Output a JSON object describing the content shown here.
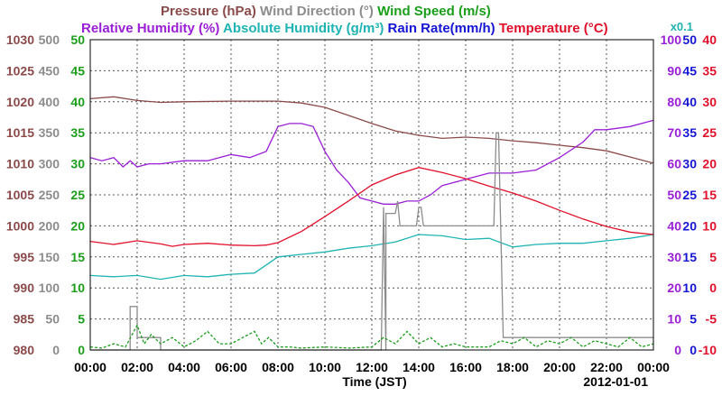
{
  "chart_data": {
    "type": "line",
    "legend": {
      "row1": [
        {
          "label": "Pressure (hPa)",
          "color": "#8b4a4a"
        },
        {
          "label": " Wind Direction (°)",
          "color": "#8c8c8c"
        },
        {
          "label": " Wind Speed (m/s)",
          "color": "#1a9e1a"
        }
      ],
      "row2": [
        {
          "label": "Relative Humidity (%)",
          "color": "#9a1fd6"
        },
        {
          "label": " Absolute Humidity (g/m³)",
          "color": "#1fb3b3"
        },
        {
          "label": " Rain Rate(mm/h)",
          "color": "#1515d4"
        },
        {
          "label": " Temperature (°C)",
          "color": "#e0102a"
        }
      ],
      "rain_multiplier": "x0.1"
    },
    "xlabel": "Time (JST)",
    "date_label": "2012-01-01",
    "x_ticks": [
      "00:00",
      "02:00",
      "04:00",
      "06:00",
      "08:00",
      "10:00",
      "12:00",
      "14:00",
      "16:00",
      "18:00",
      "20:00",
      "22:00",
      "00:00"
    ],
    "x_range_hours": [
      0,
      24
    ],
    "left_axes": [
      {
        "name": "Pressure",
        "unit": "hPa",
        "color": "#8b4a4a",
        "min": 980,
        "max": 1030,
        "ticks": [
          "980",
          "985",
          "990",
          "995",
          "1000",
          "1005",
          "1010",
          "1015",
          "1020",
          "1025",
          "1030"
        ]
      },
      {
        "name": "Wind Direction",
        "unit": "°",
        "color": "#8c8c8c",
        "min": 0,
        "max": 500,
        "ticks": [
          "0",
          "50",
          "100",
          "150",
          "200",
          "250",
          "300",
          "350",
          "400",
          "450",
          "500"
        ]
      },
      {
        "name": "Wind Speed",
        "unit": "m/s",
        "color": "#1a9e1a",
        "min": 0,
        "max": 50,
        "ticks": [
          "0",
          "5",
          "10",
          "15",
          "20",
          "25",
          "30",
          "35",
          "40",
          "45",
          "50"
        ]
      }
    ],
    "right_axes": [
      {
        "name": "Relative Humidity",
        "unit": "%",
        "color": "#9a1fd6",
        "min": 0,
        "max": 100,
        "ticks": [
          "0",
          "10",
          "20",
          "30",
          "40",
          "50",
          "60",
          "70",
          "80",
          "90",
          "100"
        ]
      },
      {
        "name": "Rain Rate",
        "unit": "mm/h x0.1",
        "color": "#1515d4",
        "min": 0,
        "max": 50,
        "ticks": [
          "0",
          "5",
          "10",
          "15",
          "20",
          "25",
          "30",
          "35",
          "40",
          "45",
          "50"
        ]
      },
      {
        "name": "Temperature",
        "unit": "°C",
        "color": "#e0102a",
        "min": -10,
        "max": 40,
        "ticks": [
          "-10",
          "-5",
          "0",
          "5",
          "10",
          "15",
          "20",
          "25",
          "30",
          "35",
          "40"
        ]
      }
    ],
    "grid": true,
    "series": [
      {
        "name": "Pressure (hPa)",
        "color": "#8b4a4a",
        "axis": "pressure",
        "x": [
          0,
          1,
          2,
          3,
          4,
          6,
          8,
          9,
          10,
          11,
          12,
          13,
          14,
          15,
          16,
          17,
          18,
          19,
          20,
          21,
          22,
          23,
          24
        ],
        "y": [
          1020.5,
          1020.8,
          1020.2,
          1019.9,
          1020.0,
          1020.1,
          1020.1,
          1019.8,
          1019.1,
          1017.8,
          1016.5,
          1015.3,
          1014.6,
          1014.1,
          1014.3,
          1014.1,
          1013.7,
          1013.4,
          1013.0,
          1012.6,
          1012.1,
          1011.1,
          1010.1
        ]
      },
      {
        "name": "Relative Humidity (%)",
        "color": "#9a1fd6",
        "axis": "rh",
        "x": [
          0,
          0.5,
          1,
          1.4,
          1.7,
          2,
          2.5,
          3,
          4,
          5,
          6,
          6.8,
          7.5,
          8,
          8.5,
          9,
          9.5,
          10,
          10.5,
          11,
          11.5,
          12,
          12.5,
          13,
          13.5,
          14,
          14.5,
          15,
          16,
          17,
          18,
          19,
          20,
          21,
          21.5,
          22,
          23,
          24
        ],
        "y": [
          62,
          61,
          62,
          59,
          61,
          59,
          60,
          60,
          61,
          61,
          63,
          62,
          64,
          72,
          73,
          73,
          72,
          64,
          58,
          54,
          49,
          48,
          47,
          47,
          48,
          48,
          50,
          53,
          55,
          57,
          57,
          58,
          62,
          67,
          71,
          71,
          72,
          74
        ]
      },
      {
        "name": "Absolute Humidity (g/m³)",
        "color": "#1fb3b3",
        "axis": "ah",
        "x": [
          0,
          1,
          2,
          3,
          4,
          5,
          6,
          7,
          8,
          9,
          10,
          11,
          12,
          13,
          14,
          15,
          16,
          17,
          18,
          19,
          20,
          21,
          22,
          23,
          24
        ],
        "y": [
          6.0,
          5.9,
          6.0,
          5.7,
          6.0,
          5.9,
          6.1,
          6.2,
          7.5,
          7.7,
          7.9,
          8.2,
          8.4,
          8.7,
          9.3,
          9.2,
          8.9,
          9.0,
          8.3,
          8.5,
          8.6,
          8.6,
          8.8,
          9.0,
          9.3
        ]
      },
      {
        "name": "Temperature (°C)",
        "color": "#e0102a",
        "axis": "temp",
        "x": [
          0,
          1,
          2,
          3,
          3.5,
          4,
          5,
          6,
          7,
          7.5,
          8,
          9,
          10,
          11,
          12,
          13,
          14,
          15,
          16,
          17,
          18,
          19,
          20,
          21,
          22,
          23,
          24
        ],
        "y": [
          7.5,
          7.0,
          7.6,
          7.1,
          6.7,
          7.0,
          7.2,
          6.9,
          6.8,
          6.9,
          7.3,
          9.1,
          11.5,
          14.0,
          16.6,
          18.2,
          19.4,
          18.6,
          17.6,
          16.4,
          15.3,
          14.0,
          12.5,
          11.1,
          9.9,
          9.0,
          8.6
        ]
      },
      {
        "name": "Wind Direction (°)",
        "color": "#8c8c8c",
        "axis": "wdir",
        "x": [
          0,
          1.7,
          1.7,
          2.0,
          2.0,
          3.0,
          3.0,
          12.4,
          12.5,
          12.5,
          12.6,
          12.6,
          13.0,
          13.1,
          13.2,
          13.3,
          13.3,
          13.9,
          14.0,
          14.1,
          14.2,
          14.2,
          17.2,
          17.3,
          17.4,
          17.6,
          17.6,
          24
        ],
        "y": [
          0,
          0,
          70,
          70,
          20,
          20,
          0,
          0,
          230,
          230,
          0,
          220,
          220,
          240,
          200,
          200,
          200,
          200,
          230,
          230,
          200,
          200,
          200,
          350,
          350,
          20,
          20,
          20
        ]
      },
      {
        "name": "Wind Speed (m/s)",
        "color": "#1a9e1a",
        "axis": "wspd",
        "x": [
          0,
          0.5,
          1,
          1.5,
          2,
          2.3,
          2.6,
          3,
          3.5,
          4,
          4.5,
          5,
          5.5,
          6,
          6.5,
          7,
          7.3,
          7.6,
          8,
          8.5,
          9,
          10,
          11,
          12,
          12.5,
          13,
          13.5,
          14,
          14.5,
          15,
          15.5,
          16,
          17,
          17.5,
          18,
          18.5,
          19,
          19.5,
          20,
          20.5,
          21,
          21.5,
          22,
          22.5,
          23,
          23.5,
          24
        ],
        "y": [
          0.5,
          0.3,
          1,
          0.5,
          4,
          1,
          2.5,
          1,
          2,
          0.5,
          1.5,
          3,
          1,
          1,
          2,
          3,
          1,
          2,
          0.5,
          0.5,
          0.3,
          0.5,
          0.3,
          0.5,
          2,
          1,
          3,
          1,
          2,
          0.5,
          1,
          0.5,
          0.5,
          1.5,
          1,
          2,
          0.5,
          1.5,
          1,
          2,
          0.5,
          1.5,
          1,
          0.5,
          2,
          0.5,
          1
        ]
      }
    ]
  }
}
